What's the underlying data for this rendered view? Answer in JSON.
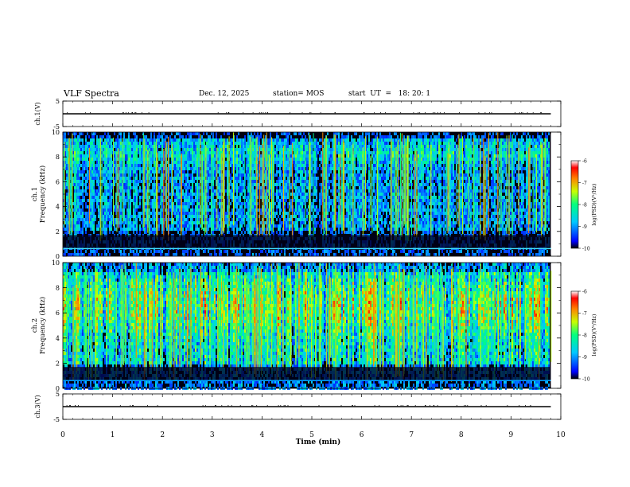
{
  "header": {
    "title": "VLF Spectra",
    "date": "Dec. 12, 2025",
    "station": "station= MOS",
    "start_ut": "start  UT  =   18: 20: 1"
  },
  "chart_data": [
    {
      "type": "line",
      "name": "ch1-waveform",
      "ylabel": "ch.1(V)",
      "ylim": [
        -5,
        5
      ],
      "yticks": [
        "5",
        "-5"
      ],
      "x": [
        0,
        9.8
      ],
      "values": [
        0,
        0
      ]
    },
    {
      "type": "heatmap",
      "name": "ch1-spectrogram",
      "ylabel_line1": "ch.1",
      "ylabel_line2": "Frequency (kHz)",
      "ylim": [
        0,
        10
      ],
      "yticks": [
        "0",
        "2",
        "4",
        "6",
        "8",
        "10"
      ],
      "xlim": [
        0,
        10
      ],
      "data_extent_min": 9.8,
      "colorbar": {
        "label": "log(PSD)(V²/Hz)",
        "range": [
          -10,
          -6
        ],
        "ticks": [
          "-6",
          "-7",
          "-8",
          "-9",
          "-10"
        ]
      }
    },
    {
      "type": "heatmap",
      "name": "ch2-spectrogram",
      "ylabel_line1": "ch.2",
      "ylabel_line2": "Frequency (kHz)",
      "ylim": [
        0,
        10
      ],
      "yticks": [
        "0",
        "2",
        "4",
        "6",
        "8",
        "10"
      ],
      "xlim": [
        0,
        10
      ],
      "data_extent_min": 9.8,
      "colorbar": {
        "label": "log(PSD)(V²/Hz)",
        "range": [
          -10,
          -6
        ],
        "ticks": [
          "-6",
          "-7",
          "-8",
          "-9",
          "-10"
        ]
      }
    },
    {
      "type": "line",
      "name": "ch3-waveform",
      "ylabel": "ch.3(V)",
      "ylim": [
        -5,
        5
      ],
      "yticks": [
        "5",
        "-5"
      ],
      "x": [
        0,
        9.8
      ],
      "values": [
        0,
        0
      ]
    }
  ],
  "xaxis": {
    "label": "Time  (min)",
    "ticks": [
      "0",
      "1",
      "2",
      "3",
      "4",
      "5",
      "6",
      "7",
      "8",
      "9",
      "10"
    ],
    "range": [
      0,
      10
    ]
  },
  "colors": {
    "colormap": [
      "#000000",
      "#0000ff",
      "#00c8ff",
      "#00ff80",
      "#c8ff00",
      "#ff8000",
      "#ff0000",
      "#ffffff"
    ]
  }
}
